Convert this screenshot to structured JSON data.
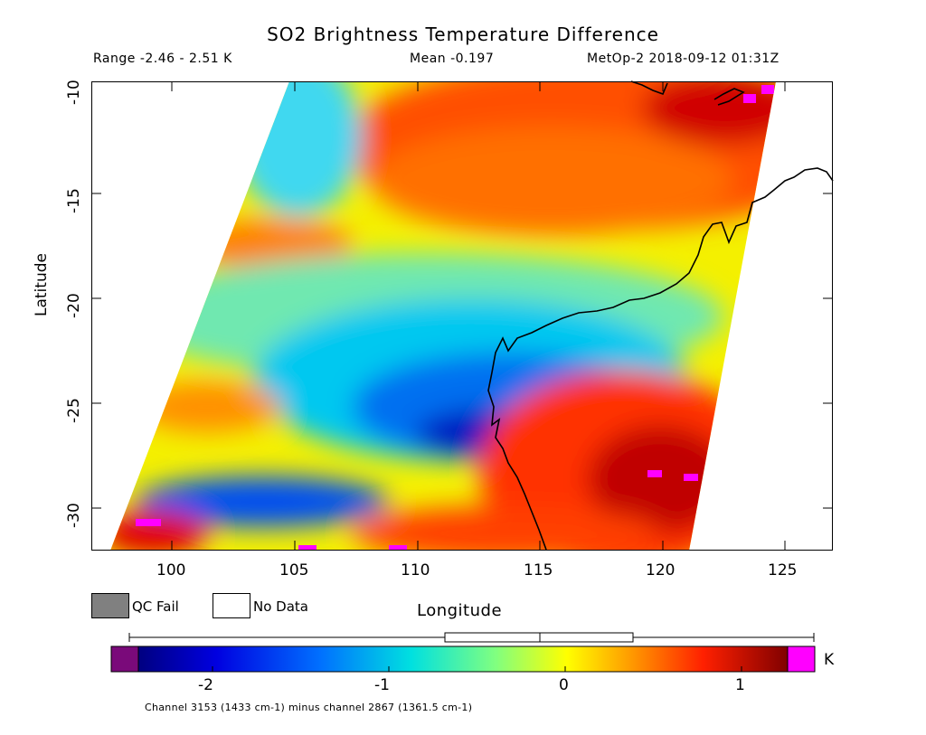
{
  "title": "SO2 Brightness Temperature Difference",
  "range_text": "Range -2.46 - 2.51 K",
  "mean_text": "Mean -0.197",
  "sat_text": "MetOp-2 2018-09-12 01:31Z",
  "axes": {
    "xlabel": "Longitude",
    "ylabel": "Latitude",
    "xticks": [
      "100",
      "105",
      "110",
      "115",
      "120",
      "125"
    ],
    "yticks": [
      "-10",
      "-15",
      "-20",
      "-25",
      "-30"
    ]
  },
  "legend": {
    "qc_fail": "QC Fail",
    "no_data": "No Data",
    "qc_fail_color": "#808080",
    "no_data_color": "#ffffff"
  },
  "colorbar": {
    "unit": "K",
    "ticks": [
      "-2",
      "-1",
      "0",
      "1"
    ],
    "low_color": "#7a0a7a",
    "high_color": "#ff00ff"
  },
  "footnote": "Channel 3153 (1433 cm-1) minus channel 2867 (1361.5 cm-1)"
}
